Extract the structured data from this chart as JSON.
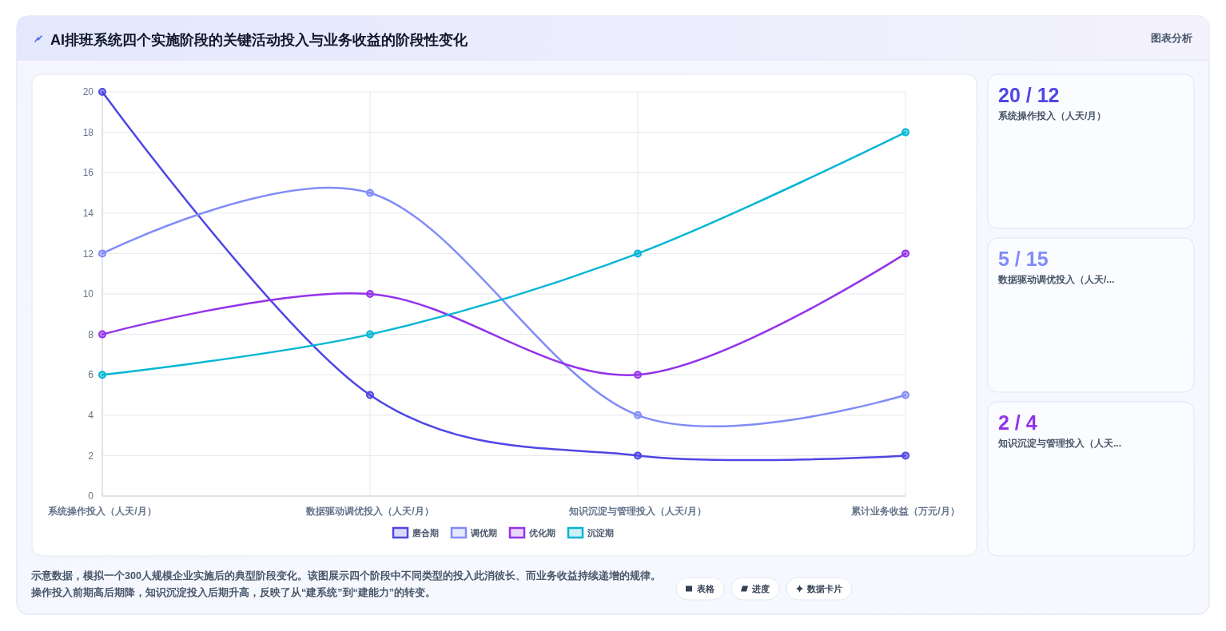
{
  "chart_data": [
    {
      "type": "line",
      "title": "AI排班系统四个实施阶段的关键活动投入与业务收益的阶段性变化",
      "categories": [
        "系统操作投入（人天/月）",
        "数据驱动调优投入（人天/月）",
        "知识沉淀与管理投入（人天/月）",
        "累计业务收益（万元/月）"
      ],
      "series": [
        {
          "name": "磨合期",
          "color": "#4f46e5",
          "values": [
            20,
            5,
            2,
            2
          ]
        },
        {
          "name": "调优期",
          "color": "#818cf8",
          "values": [
            12,
            15,
            4,
            5
          ]
        },
        {
          "name": "优化期",
          "color": "#9333ea",
          "values": [
            8,
            10,
            6,
            12
          ]
        },
        {
          "name": "沉淀期",
          "color": "#06b6d4",
          "values": [
            6,
            8,
            12,
            18
          ]
        }
      ],
      "ylim": [
        0,
        20
      ],
      "yticks": [
        0,
        2,
        4,
        6,
        8,
        10,
        12,
        14,
        16,
        18,
        20
      ],
      "grid": true,
      "legend": "bottom",
      "marker": "circle",
      "annotations": [
        "图表分析",
        "示意数据，模拟一个300人规模企业实施后的典型阶段变化。该图展示四个阶段中不同类型的投入此消彼长、而业务收益持续递增的规律。",
        "操作投入前期高后期降，知识沉淀投入后期升高，反映了从“建系统”到“建能力”的转变。",
        "表格",
        "进度",
        "数据卡片"
      ]
    },
    {
      "type": "other",
      "categories": [
        "系统操作投入（人天/月）",
        "数据驱动调优投入（人天/...",
        "知识沉淀与管理投入（人天..."
      ],
      "value_labels": [
        "20 / 12",
        "5 / 15",
        "2 / 4"
      ]
    }
  ]
}
